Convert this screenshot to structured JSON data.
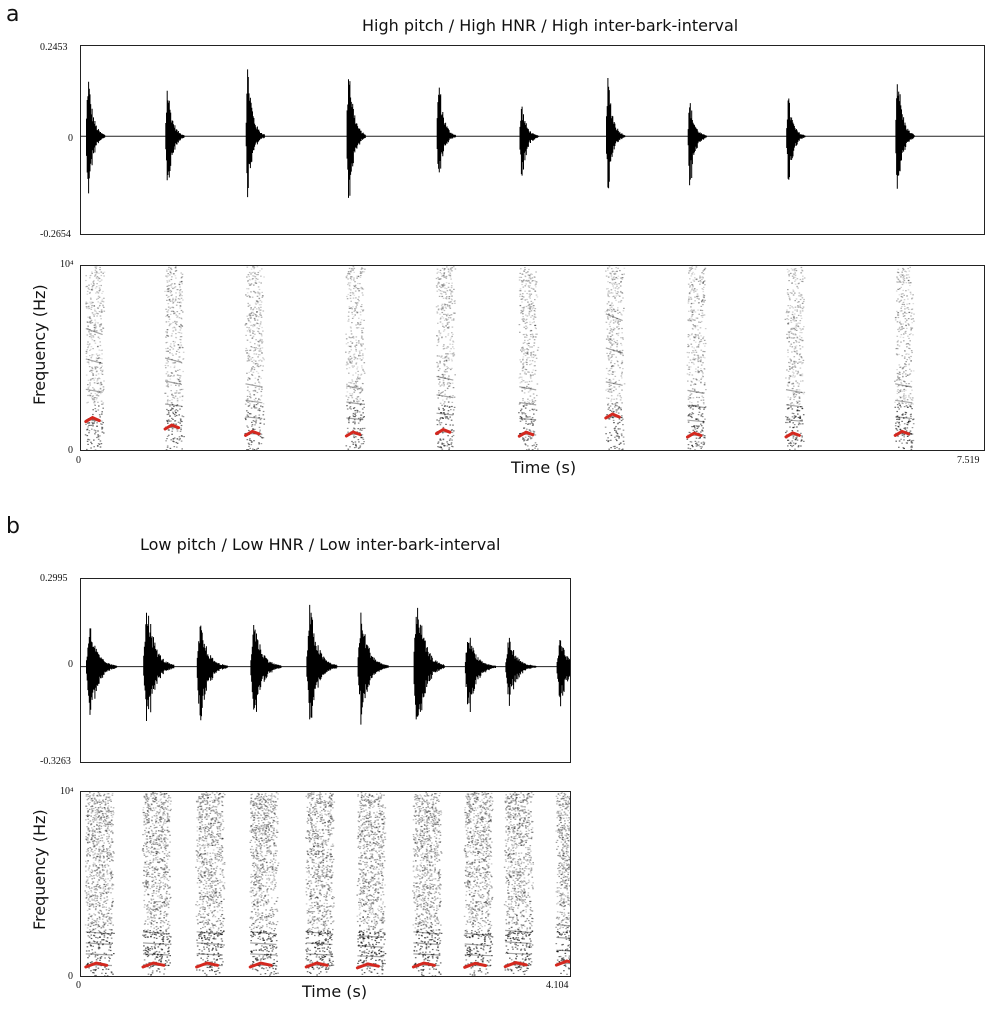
{
  "chart_data": [
    {
      "panel": "a",
      "type": "waveform",
      "title": "High pitch  / High HNR  / High inter-bark-interval",
      "ylim": [
        -0.2654,
        0.2453
      ],
      "ytick_labels": [
        "0.2453",
        "0",
        "-0.2654"
      ],
      "duration_s": 7.519,
      "bark_onsets_s": [
        0.04,
        0.7,
        1.37,
        2.21,
        2.96,
        3.65,
        4.37,
        5.05,
        5.87,
        6.78
      ],
      "bark_peaks_pos": [
        0.19,
        0.16,
        0.22,
        0.24,
        0.18,
        0.1,
        0.18,
        0.11,
        0.12,
        0.21
      ],
      "bark_peaks_neg": [
        -0.21,
        -0.22,
        -0.2,
        -0.26,
        -0.15,
        -0.16,
        -0.19,
        -0.19,
        -0.18,
        -0.22
      ]
    },
    {
      "panel": "a",
      "type": "spectrogram",
      "xlabel": "Time (s)",
      "ylabel": "Frequency (Hz)",
      "x_tick_labels": [
        "0",
        "7.519"
      ],
      "y_tick_labels": [
        "0",
        "10⁴"
      ],
      "xlim": [
        0,
        7.519
      ],
      "ylim": [
        0,
        10000
      ],
      "pitch_color": "#d4281f",
      "pitch_tracks_hz": [
        1650,
        1250,
        900,
        870,
        1000,
        860,
        1850,
        810,
        820,
        900
      ]
    },
    {
      "panel": "b",
      "type": "waveform",
      "title": "Low pitch / Low HNR / Low inter-bark-interval",
      "ylim": [
        -0.3263,
        0.2995
      ],
      "ytick_labels": [
        "0.2995",
        "0",
        "-0.3263"
      ],
      "duration_s": 4.104,
      "bark_onsets_s": [
        0.04,
        0.52,
        0.97,
        1.42,
        1.89,
        2.32,
        2.79,
        3.22,
        3.56,
        3.99
      ],
      "bark_peaks_pos": [
        0.16,
        0.26,
        0.16,
        0.18,
        0.23,
        0.2,
        0.27,
        0.13,
        0.11,
        0.1
      ],
      "bark_peaks_neg": [
        -0.25,
        -0.28,
        -0.25,
        -0.25,
        -0.25,
        -0.24,
        -0.32,
        -0.22,
        -0.16,
        -0.16
      ]
    },
    {
      "panel": "b",
      "type": "spectrogram",
      "xlabel": "Time (s)",
      "ylabel": "Frequency (Hz)",
      "x_tick_labels": [
        "0",
        "4.104"
      ],
      "y_tick_labels": [
        "0",
        "10⁴"
      ],
      "xlim": [
        0,
        4.104
      ],
      "ylim": [
        0,
        10000
      ],
      "pitch_color": "#d4281f",
      "pitch_tracks_hz": [
        600,
        600,
        600,
        600,
        600,
        550,
        600,
        580,
        620,
        700
      ]
    }
  ],
  "labels": {
    "panel_a": "a",
    "panel_b": "b"
  }
}
